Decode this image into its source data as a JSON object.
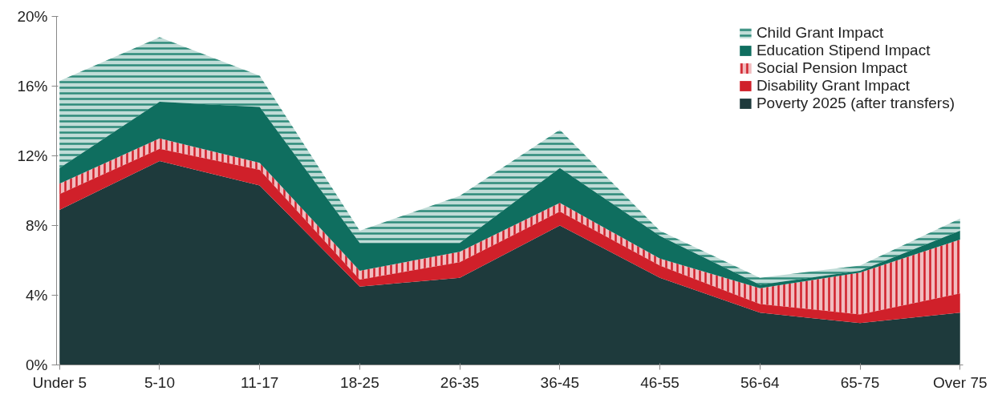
{
  "chart_data": {
    "type": "area",
    "stacked": true,
    "categories": [
      "Under 5",
      "5-10",
      "11-17",
      "18-25",
      "26-35",
      "36-45",
      "46-55",
      "56-64",
      "65-75",
      "Over 75"
    ],
    "series": [
      {
        "name": "Poverty 2025 (after transfers)",
        "color": "#1e3a3c",
        "values": [
          8.9,
          11.7,
          10.3,
          4.5,
          5.0,
          8.0,
          5.0,
          3.0,
          2.4,
          3.0
        ]
      },
      {
        "name": "Disability Grant Impact",
        "color": "#d0202a",
        "values": [
          0.9,
          0.7,
          0.9,
          0.4,
          0.9,
          0.8,
          0.7,
          0.5,
          0.5,
          1.1
        ]
      },
      {
        "name": "Social Pension Impact",
        "color": "#d0202a",
        "values": [
          0.6,
          0.6,
          0.4,
          0.5,
          0.6,
          0.5,
          0.4,
          0.9,
          2.4,
          3.1
        ]
      },
      {
        "name": "Education Stipend Impact",
        "color": "#0f6e5f",
        "values": [
          0.9,
          2.1,
          3.2,
          1.6,
          0.5,
          2.0,
          1.3,
          0.2,
          0.1,
          0.5
        ]
      },
      {
        "name": "Child Grant Impact",
        "color": "#2e8b7a",
        "values": [
          5.0,
          3.7,
          1.8,
          0.7,
          2.7,
          2.2,
          0.3,
          0.4,
          0.3,
          0.7
        ]
      }
    ],
    "ylim": [
      0,
      20
    ],
    "yticks": [
      {
        "value": 0,
        "label": "0%"
      },
      {
        "value": 4,
        "label": "4%"
      },
      {
        "value": 8,
        "label": "8%"
      },
      {
        "value": 12,
        "label": "12%"
      },
      {
        "value": 16,
        "label": "16%"
      },
      {
        "value": 20,
        "label": "20%"
      }
    ],
    "legend": "top right",
    "grid": false
  }
}
